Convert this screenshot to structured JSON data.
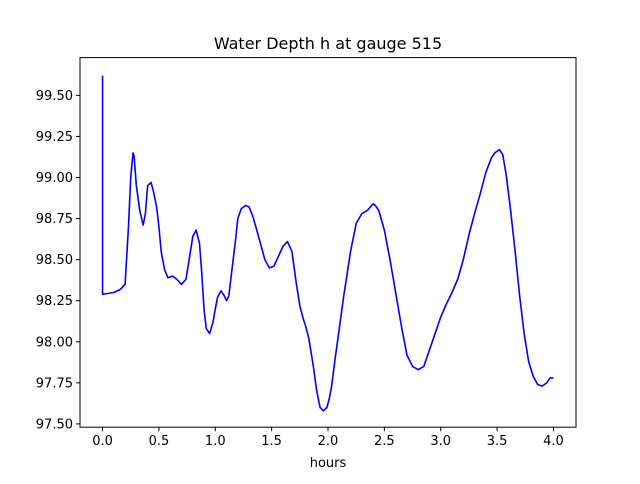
{
  "chart_data": {
    "type": "line",
    "title": "Water Depth h at gauge 515",
    "xlabel": "hours",
    "ylabel": "",
    "xlim": [
      -0.2,
      4.2
    ],
    "ylim": [
      97.48,
      99.73
    ],
    "grid": false,
    "x_ticks": [
      "0.0",
      "0.5",
      "1.0",
      "1.5",
      "2.0",
      "2.5",
      "3.0",
      "3.5",
      "4.0"
    ],
    "y_ticks": [
      "97.50",
      "97.75",
      "98.00",
      "98.25",
      "98.50",
      "98.75",
      "99.00",
      "99.25",
      "99.50"
    ],
    "series": [
      {
        "color": "#0000ff",
        "x": [
          0,
          0,
          0.01,
          0.1,
          0.16,
          0.2,
          0.23,
          0.25,
          0.27,
          0.28,
          0.3,
          0.33,
          0.36,
          0.38,
          0.4,
          0.43,
          0.45,
          0.48,
          0.5,
          0.52,
          0.55,
          0.58,
          0.62,
          0.66,
          0.7,
          0.74,
          0.78,
          0.8,
          0.83,
          0.86,
          0.88,
          0.9,
          0.92,
          0.95,
          0.98,
          1.0,
          1.02,
          1.05,
          1.08,
          1.1,
          1.12,
          1.15,
          1.18,
          1.2,
          1.23,
          1.27,
          1.3,
          1.33,
          1.36,
          1.4,
          1.44,
          1.48,
          1.52,
          1.56,
          1.6,
          1.64,
          1.68,
          1.7,
          1.72,
          1.75,
          1.78,
          1.8,
          1.83,
          1.87,
          1.9,
          1.93,
          1.96,
          1.99,
          2.01,
          2.03,
          2.06,
          2.1,
          2.14,
          2.2,
          2.25,
          2.3,
          2.35,
          2.4,
          2.42,
          2.45,
          2.5,
          2.55,
          2.6,
          2.65,
          2.7,
          2.75,
          2.8,
          2.85,
          2.9,
          2.95,
          3.0,
          3.05,
          3.1,
          3.15,
          3.2,
          3.25,
          3.3,
          3.35,
          3.4,
          3.45,
          3.48,
          3.52,
          3.55,
          3.58,
          3.62,
          3.66,
          3.7,
          3.74,
          3.78,
          3.82,
          3.86,
          3.9,
          3.94,
          3.97,
          4.0
        ],
        "y": [
          99.62,
          98.29,
          98.29,
          98.3,
          98.32,
          98.35,
          98.7,
          99.0,
          99.15,
          99.13,
          98.95,
          98.8,
          98.71,
          98.78,
          98.95,
          98.97,
          98.92,
          98.82,
          98.7,
          98.55,
          98.44,
          98.39,
          98.4,
          98.38,
          98.35,
          98.38,
          98.55,
          98.64,
          98.68,
          98.6,
          98.42,
          98.2,
          98.08,
          98.05,
          98.12,
          98.2,
          98.27,
          98.31,
          98.28,
          98.25,
          98.28,
          98.45,
          98.62,
          98.75,
          98.81,
          98.83,
          98.82,
          98.77,
          98.7,
          98.6,
          98.5,
          98.45,
          98.46,
          98.52,
          98.58,
          98.61,
          98.55,
          98.45,
          98.35,
          98.22,
          98.14,
          98.1,
          98.02,
          97.85,
          97.7,
          97.6,
          97.58,
          97.6,
          97.65,
          97.72,
          97.88,
          98.08,
          98.28,
          98.55,
          98.72,
          98.78,
          98.8,
          98.84,
          98.83,
          98.8,
          98.68,
          98.5,
          98.3,
          98.1,
          97.92,
          97.85,
          97.83,
          97.85,
          97.95,
          98.05,
          98.15,
          98.23,
          98.3,
          98.38,
          98.5,
          98.65,
          98.78,
          98.9,
          99.03,
          99.12,
          99.15,
          99.17,
          99.14,
          99.02,
          98.8,
          98.55,
          98.28,
          98.05,
          97.88,
          97.79,
          97.74,
          97.73,
          97.75,
          97.78,
          97.78
        ]
      }
    ]
  }
}
